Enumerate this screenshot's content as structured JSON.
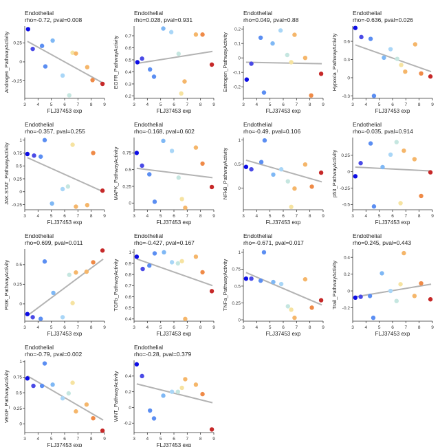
{
  "page": {
    "layout": "4x4 grid of scatter plots",
    "colors": [
      "#0d0de6",
      "#4a4ae6",
      "#5b8ef2",
      "#7fb8f5",
      "#a9d6f7",
      "#c5e6e0",
      "#f6e3a1",
      "#f5b66a",
      "#ef8a47",
      "#c62828"
    ]
  },
  "chart_data": [
    {
      "type": "scatter",
      "title": "Endothelial",
      "subtitle": "rho=-0.72, pval=0.008",
      "xlabel": "FLJ37453 exp",
      "ylabel": "Androgen_PathwayActivity",
      "xlim": [
        3,
        9
      ],
      "xticks": [
        3,
        4,
        5,
        6,
        7,
        8,
        9
      ],
      "ylim": [
        -0.48,
        0.47
      ],
      "yticks": [
        -0.25,
        0.0,
        0.25
      ],
      "points": [
        {
          "x": 3.25,
          "y": 0.43
        },
        {
          "x": 3.6,
          "y": 0.17
        },
        {
          "x": 4.3,
          "y": 0.21
        },
        {
          "x": 4.55,
          "y": -0.06
        },
        {
          "x": 5.1,
          "y": 0.28
        },
        {
          "x": 5.85,
          "y": -0.18
        },
        {
          "x": 6.35,
          "y": -0.44
        },
        {
          "x": 6.6,
          "y": 0.12
        },
        {
          "x": 6.85,
          "y": 0.11
        },
        {
          "x": 7.7,
          "y": -0.07
        },
        {
          "x": 8.1,
          "y": -0.24
        },
        {
          "x": 8.85,
          "y": -0.29
        }
      ],
      "line": {
        "x1": 3.2,
        "y1": 0.27,
        "x2": 8.9,
        "y2": -0.28
      }
    },
    {
      "type": "scatter",
      "title": "Endothelial",
      "subtitle": "rho=0.028, pval=0.931",
      "xlabel": "FLJ37453 exp",
      "ylabel": "EGFR_PathwayActivity",
      "xlim": [
        3,
        9
      ],
      "xticks": [
        3,
        4,
        5,
        6,
        7,
        8,
        9
      ],
      "ylim": [
        0.18,
        0.78
      ],
      "yticks": [
        0.2,
        0.3,
        0.4,
        0.5,
        0.6,
        0.7
      ],
      "points": [
        {
          "x": 3.25,
          "y": 0.48
        },
        {
          "x": 3.6,
          "y": 0.51
        },
        {
          "x": 4.2,
          "y": 0.42
        },
        {
          "x": 4.5,
          "y": 0.36
        },
        {
          "x": 5.2,
          "y": 0.76
        },
        {
          "x": 5.8,
          "y": 0.73
        },
        {
          "x": 6.35,
          "y": 0.55
        },
        {
          "x": 6.55,
          "y": 0.22
        },
        {
          "x": 6.8,
          "y": 0.32
        },
        {
          "x": 7.65,
          "y": 0.71
        },
        {
          "x": 8.15,
          "y": 0.71
        },
        {
          "x": 8.85,
          "y": 0.46
        }
      ],
      "line": {
        "x1": 3.2,
        "y1": 0.47,
        "x2": 8.9,
        "y2": 0.57
      }
    },
    {
      "type": "scatter",
      "title": "Endothelial",
      "subtitle": "rho=0.049, pval=0.88",
      "xlabel": "FLJ37453 exp",
      "ylabel": "Estrogen_PathwayActivity",
      "xlim": [
        3,
        9
      ],
      "xticks": [
        3,
        4,
        5,
        6,
        7,
        8,
        9
      ],
      "ylim": [
        -0.28,
        0.22
      ],
      "yticks": [
        -0.2,
        -0.1,
        0.0,
        0.1,
        0.2
      ],
      "points": [
        {
          "x": 3.25,
          "y": -0.15
        },
        {
          "x": 3.6,
          "y": -0.04
        },
        {
          "x": 4.3,
          "y": 0.14
        },
        {
          "x": 4.55,
          "y": -0.24
        },
        {
          "x": 5.2,
          "y": 0.1
        },
        {
          "x": 5.8,
          "y": 0.19
        },
        {
          "x": 6.3,
          "y": 0.02
        },
        {
          "x": 6.6,
          "y": -0.03
        },
        {
          "x": 6.85,
          "y": 0.16
        },
        {
          "x": 7.65,
          "y": 0.0
        },
        {
          "x": 8.1,
          "y": -0.26
        },
        {
          "x": 8.85,
          "y": -0.11
        }
      ],
      "line": {
        "x1": 3.2,
        "y1": -0.03,
        "x2": 8.9,
        "y2": -0.04
      }
    },
    {
      "type": "scatter",
      "title": "Endothelial",
      "subtitle": "rho=-0.636, pval=0.026",
      "xlabel": "FLJ37453 exp",
      "ylabel": "Hypoxia_PathwayActivity",
      "xlim": [
        3,
        9
      ],
      "xticks": [
        3,
        4,
        5,
        6,
        7,
        8,
        9
      ],
      "ylim": [
        -0.34,
        0.85
      ],
      "yticks": [
        -0.3,
        0.0,
        0.3,
        0.6
      ],
      "points": [
        {
          "x": 3.2,
          "y": 0.82
        },
        {
          "x": 3.65,
          "y": 0.67
        },
        {
          "x": 4.35,
          "y": 0.64
        },
        {
          "x": 4.6,
          "y": -0.3
        },
        {
          "x": 5.35,
          "y": 0.33
        },
        {
          "x": 5.85,
          "y": 0.47
        },
        {
          "x": 6.35,
          "y": 0.31
        },
        {
          "x": 6.65,
          "y": 0.21
        },
        {
          "x": 6.95,
          "y": 0.1
        },
        {
          "x": 7.7,
          "y": 0.55
        },
        {
          "x": 8.15,
          "y": 0.07
        },
        {
          "x": 8.85,
          "y": 0.02
        }
      ],
      "line": {
        "x1": 3.2,
        "y1": 0.54,
        "x2": 8.9,
        "y2": 0.1
      }
    },
    {
      "type": "scatter",
      "title": "Endothelial",
      "subtitle": "rho=-0.357, pval=0.255",
      "xlabel": "FLJ37453 exp",
      "ylabel": "JAK.STAT_PathwayActivity",
      "xlim": [
        3,
        9
      ],
      "xticks": [
        3,
        4,
        5,
        6,
        7,
        8,
        9
      ],
      "ylim": [
        -0.35,
        1.05
      ],
      "yticks": [
        -0.25,
        0.0,
        0.25,
        0.5,
        0.75,
        1.0
      ],
      "points": [
        {
          "x": 3.2,
          "y": 0.73
        },
        {
          "x": 3.7,
          "y": 0.7
        },
        {
          "x": 4.2,
          "y": 0.68
        },
        {
          "x": 4.5,
          "y": 1.0
        },
        {
          "x": 5.05,
          "y": -0.23
        },
        {
          "x": 5.85,
          "y": 0.05
        },
        {
          "x": 6.25,
          "y": 0.1
        },
        {
          "x": 6.6,
          "y": 0.91
        },
        {
          "x": 6.85,
          "y": -0.29
        },
        {
          "x": 7.7,
          "y": -0.26
        },
        {
          "x": 8.15,
          "y": 0.75
        },
        {
          "x": 8.85,
          "y": 0.02
        }
      ],
      "line": {
        "x1": 3.2,
        "y1": 0.66,
        "x2": 8.9,
        "y2": 0.0
      }
    },
    {
      "type": "scatter",
      "title": "Endothelial",
      "subtitle": "rho=-0.168, pval=0.602",
      "xlabel": "FLJ37453 exp",
      "ylabel": "MAPK_PathwayActivity",
      "xlim": [
        3,
        9
      ],
      "xticks": [
        3,
        4,
        5,
        6,
        7,
        8,
        9
      ],
      "ylim": [
        -0.1,
        0.98
      ],
      "yticks": [
        0.0,
        0.25,
        0.5,
        0.75
      ],
      "points": [
        {
          "x": 3.2,
          "y": 0.75
        },
        {
          "x": 3.6,
          "y": 0.56
        },
        {
          "x": 4.15,
          "y": 0.43
        },
        {
          "x": 4.55,
          "y": 0.02
        },
        {
          "x": 5.2,
          "y": 0.93
        },
        {
          "x": 5.85,
          "y": 0.78
        },
        {
          "x": 6.35,
          "y": 0.38
        },
        {
          "x": 6.6,
          "y": 0.06
        },
        {
          "x": 6.85,
          "y": -0.07
        },
        {
          "x": 7.65,
          "y": 0.83
        },
        {
          "x": 8.15,
          "y": 0.59
        },
        {
          "x": 8.85,
          "y": 0.24
        }
      ],
      "line": {
        "x1": 3.2,
        "y1": 0.52,
        "x2": 8.9,
        "y2": 0.38
      }
    },
    {
      "type": "scatter",
      "title": "Endothelial",
      "subtitle": "rho=-0.49, pval=0.106",
      "xlabel": "FLJ37453 exp",
      "ylabel": "NFkB_PathwayActivity",
      "xlim": [
        3,
        9
      ],
      "xticks": [
        3,
        4,
        5,
        6,
        7,
        8,
        9
      ],
      "ylim": [
        -0.45,
        1.05
      ],
      "yticks": [
        0.0,
        0.5,
        1.0
      ],
      "points": [
        {
          "x": 3.2,
          "y": 0.44
        },
        {
          "x": 3.6,
          "y": 0.39
        },
        {
          "x": 4.35,
          "y": 0.54
        },
        {
          "x": 4.6,
          "y": 0.99
        },
        {
          "x": 5.25,
          "y": 0.28
        },
        {
          "x": 5.85,
          "y": 0.39
        },
        {
          "x": 6.35,
          "y": 0.14
        },
        {
          "x": 6.6,
          "y": -0.39
        },
        {
          "x": 6.85,
          "y": -0.01
        },
        {
          "x": 7.65,
          "y": 0.49
        },
        {
          "x": 8.15,
          "y": 0.03
        },
        {
          "x": 8.85,
          "y": 0.32
        }
      ],
      "line": {
        "x1": 3.2,
        "y1": 0.58,
        "x2": 8.9,
        "y2": 0.13
      }
    },
    {
      "type": "scatter",
      "title": "Endothelial",
      "subtitle": "rho=-0.035, pval=0.914",
      "xlabel": "FLJ37453 exp",
      "ylabel": "p53_PathwayActivity",
      "xlim": [
        3,
        9
      ],
      "xticks": [
        3,
        4,
        5,
        6,
        7,
        8,
        9
      ],
      "ylim": [
        -0.58,
        0.52
      ],
      "yticks": [
        -0.5,
        -0.25,
        0.0,
        0.25
      ],
      "points": [
        {
          "x": 3.2,
          "y": -0.07
        },
        {
          "x": 3.6,
          "y": 0.13
        },
        {
          "x": 4.35,
          "y": 0.43
        },
        {
          "x": 4.6,
          "y": -0.53
        },
        {
          "x": 5.25,
          "y": 0.07
        },
        {
          "x": 5.85,
          "y": 0.26
        },
        {
          "x": 6.3,
          "y": 0.45
        },
        {
          "x": 6.6,
          "y": -0.48
        },
        {
          "x": 6.85,
          "y": 0.32
        },
        {
          "x": 7.65,
          "y": 0.19
        },
        {
          "x": 8.15,
          "y": -0.37
        },
        {
          "x": 8.85,
          "y": -0.01
        }
      ],
      "line": {
        "x1": 3.2,
        "y1": 0.07,
        "x2": 8.9,
        "y2": 0.01
      }
    },
    {
      "type": "scatter",
      "title": "Endothelial",
      "subtitle": "rho=0.699, pval=0.011",
      "xlabel": "FLJ37453 exp",
      "ylabel": "PI3K_PathwayActivity",
      "xlim": [
        3,
        9
      ],
      "xticks": [
        3,
        4,
        5,
        6,
        7,
        8,
        9
      ],
      "ylim": [
        -0.22,
        0.7
      ],
      "yticks": [
        0.0,
        0.25,
        0.5
      ],
      "points": [
        {
          "x": 3.2,
          "y": -0.13
        },
        {
          "x": 3.6,
          "y": -0.17
        },
        {
          "x": 4.2,
          "y": -0.19
        },
        {
          "x": 4.5,
          "y": 0.54
        },
        {
          "x": 5.15,
          "y": 0.14
        },
        {
          "x": 5.85,
          "y": -0.17
        },
        {
          "x": 6.35,
          "y": 0.37
        },
        {
          "x": 6.6,
          "y": 0.01
        },
        {
          "x": 6.85,
          "y": 0.4
        },
        {
          "x": 7.65,
          "y": 0.41
        },
        {
          "x": 8.15,
          "y": 0.53
        },
        {
          "x": 8.85,
          "y": 0.68
        }
      ],
      "line": {
        "x1": 3.2,
        "y1": -0.15,
        "x2": 8.9,
        "y2": 0.57
      }
    },
    {
      "type": "scatter",
      "title": "Endothelial",
      "subtitle": "rho=-0.427, pval=0.167",
      "xlabel": "FLJ37453 exp",
      "ylabel": "TGFb_PathwayActivity",
      "xlim": [
        3,
        9
      ],
      "xticks": [
        3,
        4,
        5,
        6,
        7,
        8,
        9
      ],
      "ylim": [
        0.38,
        1.03
      ],
      "yticks": [
        0.4,
        0.5,
        0.6,
        0.7,
        0.8,
        0.9,
        1.0
      ],
      "points": [
        {
          "x": 3.2,
          "y": 0.96
        },
        {
          "x": 3.65,
          "y": 0.85
        },
        {
          "x": 4.15,
          "y": 0.88
        },
        {
          "x": 4.55,
          "y": 0.99
        },
        {
          "x": 5.25,
          "y": 1.0
        },
        {
          "x": 5.85,
          "y": 0.91
        },
        {
          "x": 6.3,
          "y": 0.9
        },
        {
          "x": 6.6,
          "y": 0.92
        },
        {
          "x": 6.85,
          "y": 0.4
        },
        {
          "x": 7.65,
          "y": 0.96
        },
        {
          "x": 8.15,
          "y": 0.82
        },
        {
          "x": 8.85,
          "y": 0.65
        }
      ],
      "line": {
        "x1": 3.2,
        "y1": 0.94,
        "x2": 8.9,
        "y2": 0.7
      }
    },
    {
      "type": "scatter",
      "title": "Endothelial",
      "subtitle": "rho=-0.671, pval=0.017",
      "xlabel": "FLJ37453 exp",
      "ylabel": "TNFa_PathwayActivity",
      "xlim": [
        3,
        9
      ],
      "xticks": [
        3,
        4,
        5,
        6,
        7,
        8,
        9
      ],
      "ylim": [
        -0.02,
        1.05
      ],
      "yticks": [
        0.0,
        0.25,
        0.5,
        0.75,
        1.0
      ],
      "points": [
        {
          "x": 3.2,
          "y": 0.61
        },
        {
          "x": 3.6,
          "y": 0.61
        },
        {
          "x": 4.3,
          "y": 0.58
        },
        {
          "x": 4.55,
          "y": 1.0
        },
        {
          "x": 5.25,
          "y": 0.56
        },
        {
          "x": 5.85,
          "y": 0.53
        },
        {
          "x": 6.35,
          "y": 0.2
        },
        {
          "x": 6.6,
          "y": 0.15
        },
        {
          "x": 6.85,
          "y": 0.03
        },
        {
          "x": 7.65,
          "y": 0.6
        },
        {
          "x": 8.15,
          "y": 0.18
        },
        {
          "x": 8.85,
          "y": 0.29
        }
      ],
      "line": {
        "x1": 3.2,
        "y1": 0.7,
        "x2": 8.9,
        "y2": 0.22
      }
    },
    {
      "type": "scatter",
      "title": "Endothelial",
      "subtitle": "rho=0.245, pval=0.443",
      "xlabel": "FLJ37453 exp",
      "ylabel": "Trail_PathwayActivity",
      "xlim": [
        3,
        9
      ],
      "xticks": [
        3,
        4,
        5,
        6,
        7,
        8,
        9
      ],
      "ylim": [
        -0.36,
        0.5
      ],
      "yticks": [
        -0.2,
        0.0,
        0.2,
        0.4
      ],
      "points": [
        {
          "x": 3.2,
          "y": -0.08
        },
        {
          "x": 3.6,
          "y": -0.07
        },
        {
          "x": 4.3,
          "y": -0.06
        },
        {
          "x": 4.55,
          "y": -0.32
        },
        {
          "x": 5.2,
          "y": 0.21
        },
        {
          "x": 5.85,
          "y": 0.0
        },
        {
          "x": 6.3,
          "y": -0.12
        },
        {
          "x": 6.6,
          "y": 0.08
        },
        {
          "x": 6.85,
          "y": 0.45
        },
        {
          "x": 7.65,
          "y": -0.06
        },
        {
          "x": 8.15,
          "y": 0.09
        },
        {
          "x": 8.85,
          "y": -0.1
        }
      ],
      "line": {
        "x1": 3.2,
        "y1": -0.07,
        "x2": 8.9,
        "y2": 0.08
      }
    },
    {
      "type": "scatter",
      "title": "Endothelial",
      "subtitle": "rho=-0.79, pval=0.002",
      "xlabel": "FLJ37453 exp",
      "ylabel": "VEGF_PathwayActivity",
      "xlim": [
        3,
        9
      ],
      "xticks": [
        3,
        4,
        5,
        6,
        7,
        8,
        9
      ],
      "ylim": [
        -0.14,
        1.02
      ],
      "yticks": [
        0.0,
        0.25,
        0.5,
        0.75,
        1.0
      ],
      "points": [
        {
          "x": 3.2,
          "y": 0.73
        },
        {
          "x": 3.65,
          "y": 0.61
        },
        {
          "x": 4.3,
          "y": 0.61
        },
        {
          "x": 4.5,
          "y": 0.97
        },
        {
          "x": 5.1,
          "y": 0.63
        },
        {
          "x": 5.85,
          "y": 0.41
        },
        {
          "x": 6.3,
          "y": 0.49
        },
        {
          "x": 6.6,
          "y": 0.66
        },
        {
          "x": 6.85,
          "y": 0.2
        },
        {
          "x": 7.65,
          "y": 0.31
        },
        {
          "x": 8.15,
          "y": 0.09
        },
        {
          "x": 8.85,
          "y": -0.11
        }
      ],
      "line": {
        "x1": 3.2,
        "y1": 0.77,
        "x2": 8.9,
        "y2": 0.06
      }
    },
    {
      "type": "scatter",
      "title": "Endothelial",
      "subtitle": "rho=-0.28, pval=0.379",
      "xlabel": "FLJ37453 exp",
      "ylabel": "WNT_PathwayActivity",
      "xlim": [
        3,
        9
      ],
      "xticks": [
        3,
        4,
        5,
        6,
        7,
        8,
        9
      ],
      "ylim": [
        -0.32,
        0.6
      ],
      "yticks": [
        -0.2,
        0.0,
        0.2,
        0.4
      ],
      "points": [
        {
          "x": 3.2,
          "y": 0.55
        },
        {
          "x": 3.6,
          "y": 0.4
        },
        {
          "x": 4.2,
          "y": -0.04
        },
        {
          "x": 4.5,
          "y": -0.14
        },
        {
          "x": 5.2,
          "y": 0.15
        },
        {
          "x": 5.85,
          "y": 0.2
        },
        {
          "x": 6.3,
          "y": 0.2
        },
        {
          "x": 6.6,
          "y": 0.25
        },
        {
          "x": 6.85,
          "y": 0.36
        },
        {
          "x": 7.65,
          "y": 0.29
        },
        {
          "x": 8.15,
          "y": 0.17
        },
        {
          "x": 8.85,
          "y": -0.28
        }
      ],
      "line": {
        "x1": 3.2,
        "y1": 0.3,
        "x2": 8.9,
        "y2": 0.06
      }
    }
  ]
}
